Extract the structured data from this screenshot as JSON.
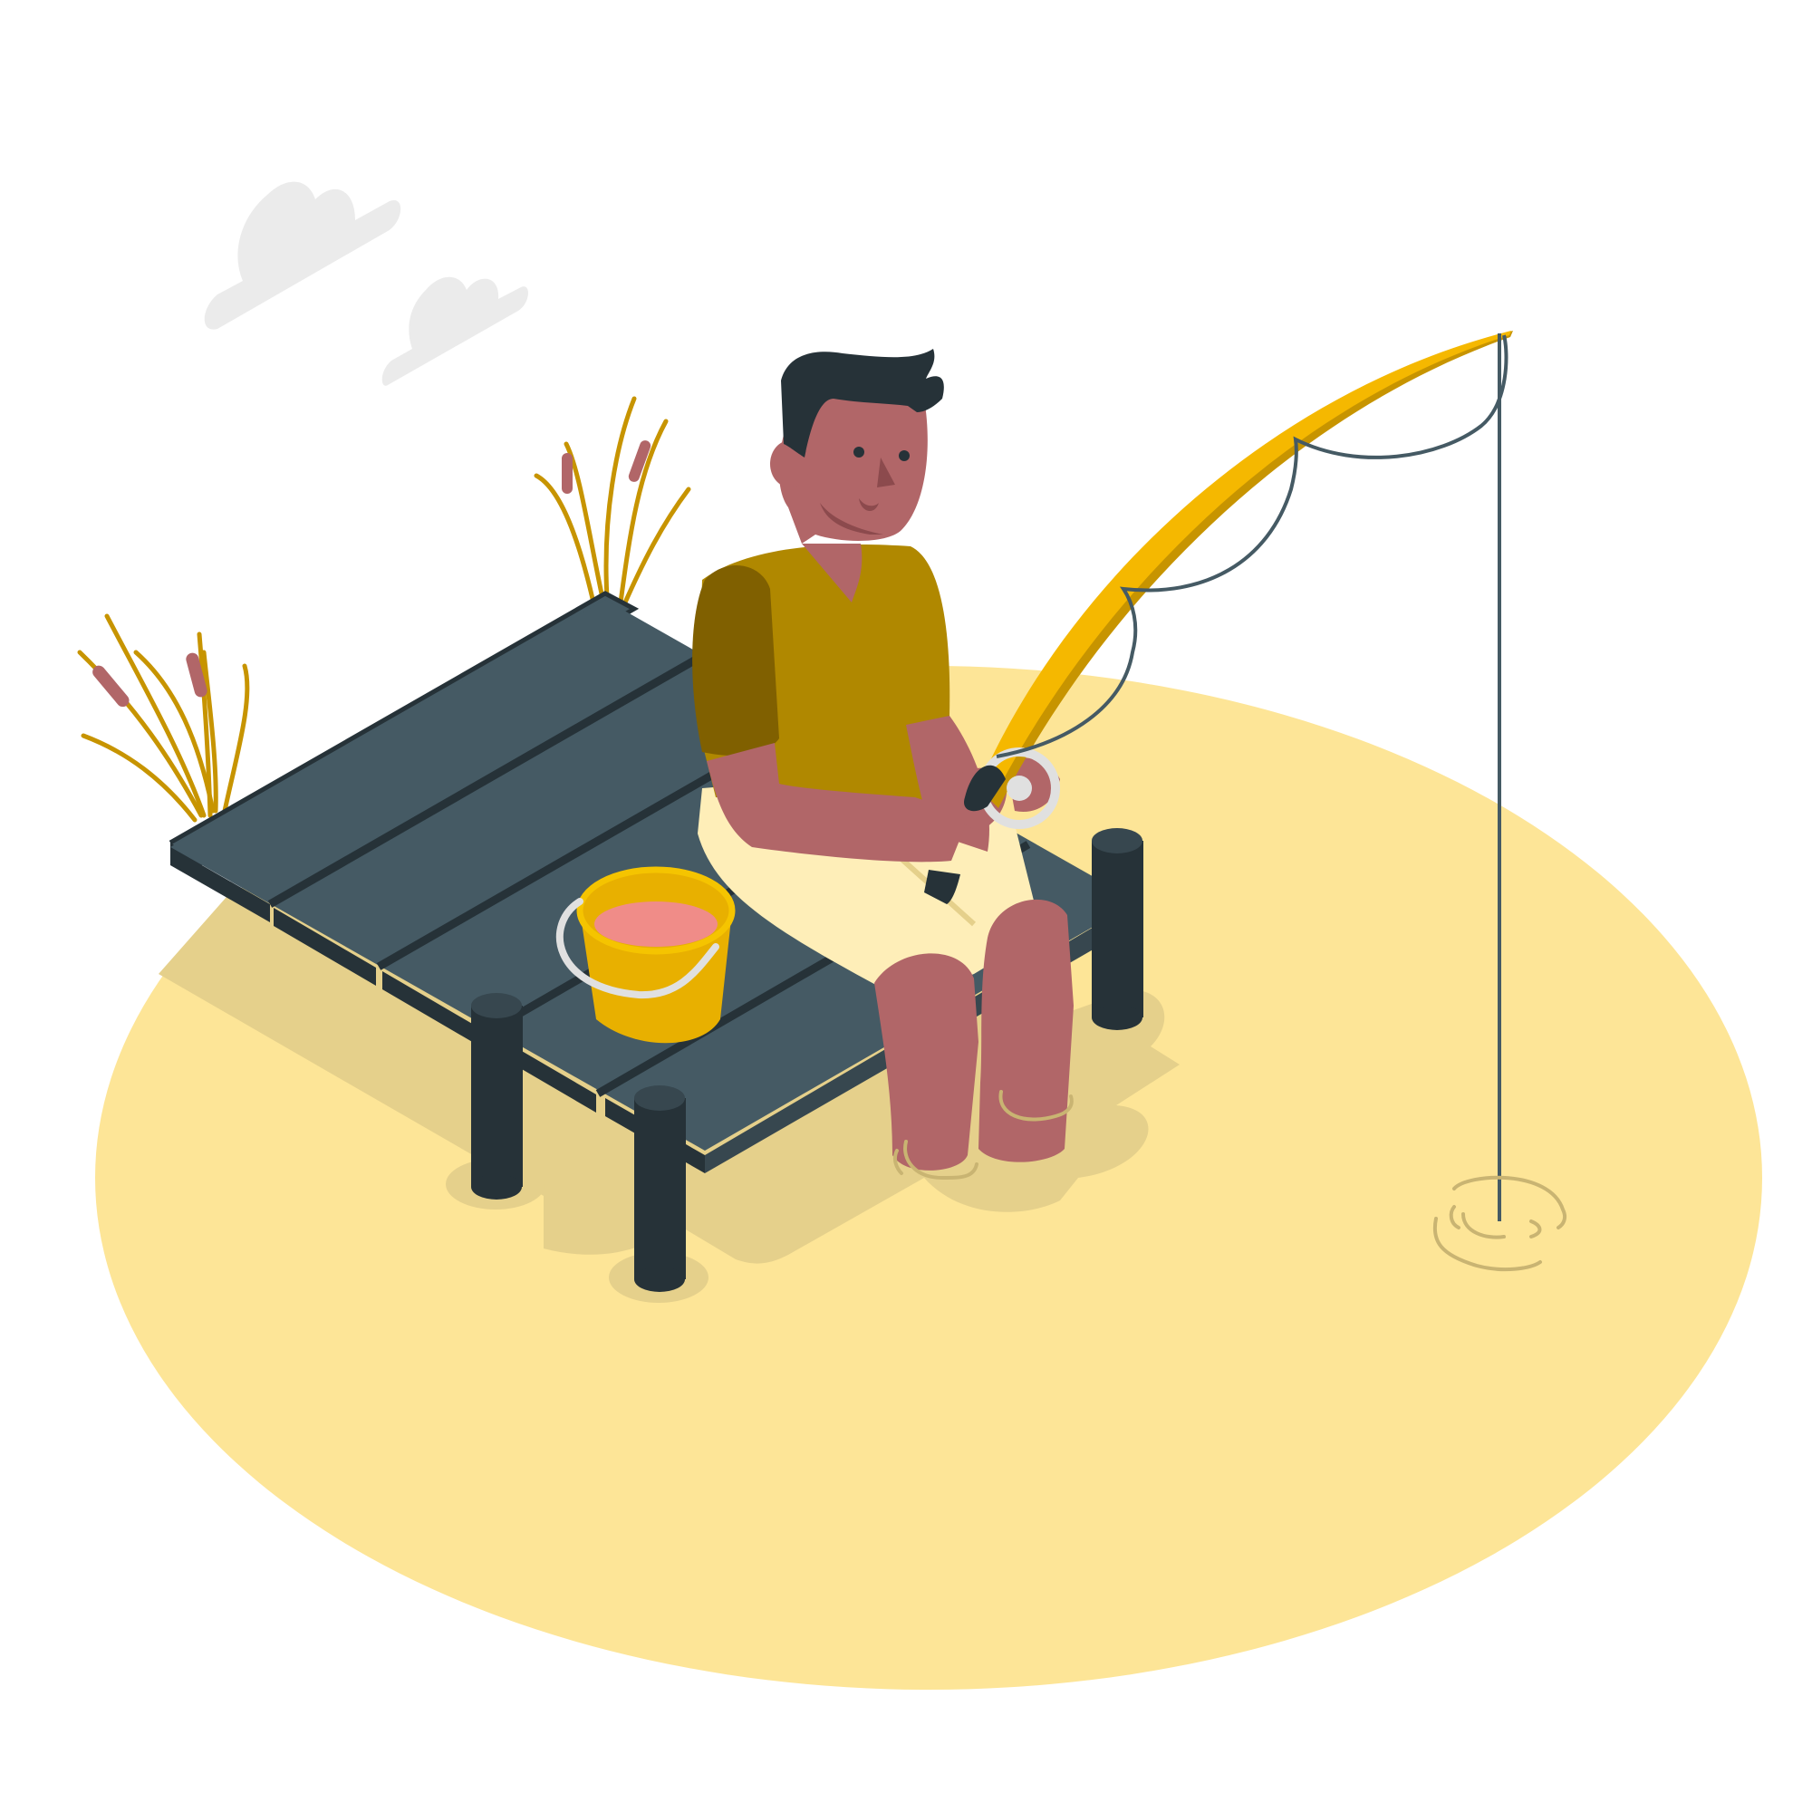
{
  "scene": {
    "subject": "fishing-illustration",
    "colors": {
      "background": "#ffffff",
      "water": "#fde597",
      "shadow": "#e5d08b",
      "cloud": "#ebebeb",
      "dock_top": "#455a64",
      "dock_edge": "#263238",
      "post_top": "#37474f",
      "rod": "#f5b800",
      "rod_shade": "#c79400",
      "line": "#455a64",
      "skin": "#b16668",
      "skin_shade": "#8c4a4d",
      "shirt": "#b08800",
      "shirt_shade": "#806000",
      "shorts": "#feeeb8",
      "hair": "#263238",
      "bucket": "#e8b000",
      "bucket_rim": "#f5c400",
      "bucket_water": "#f08c88",
      "bucket_handle": "#e0e0e0",
      "reed_leaf": "#c79400",
      "cattail": "#b16668",
      "ripple": "#c9b472"
    },
    "elements": [
      "clouds",
      "reeds",
      "dock",
      "posts",
      "bucket",
      "fisherman",
      "fishing-rod",
      "fishing-line",
      "ripples"
    ]
  }
}
